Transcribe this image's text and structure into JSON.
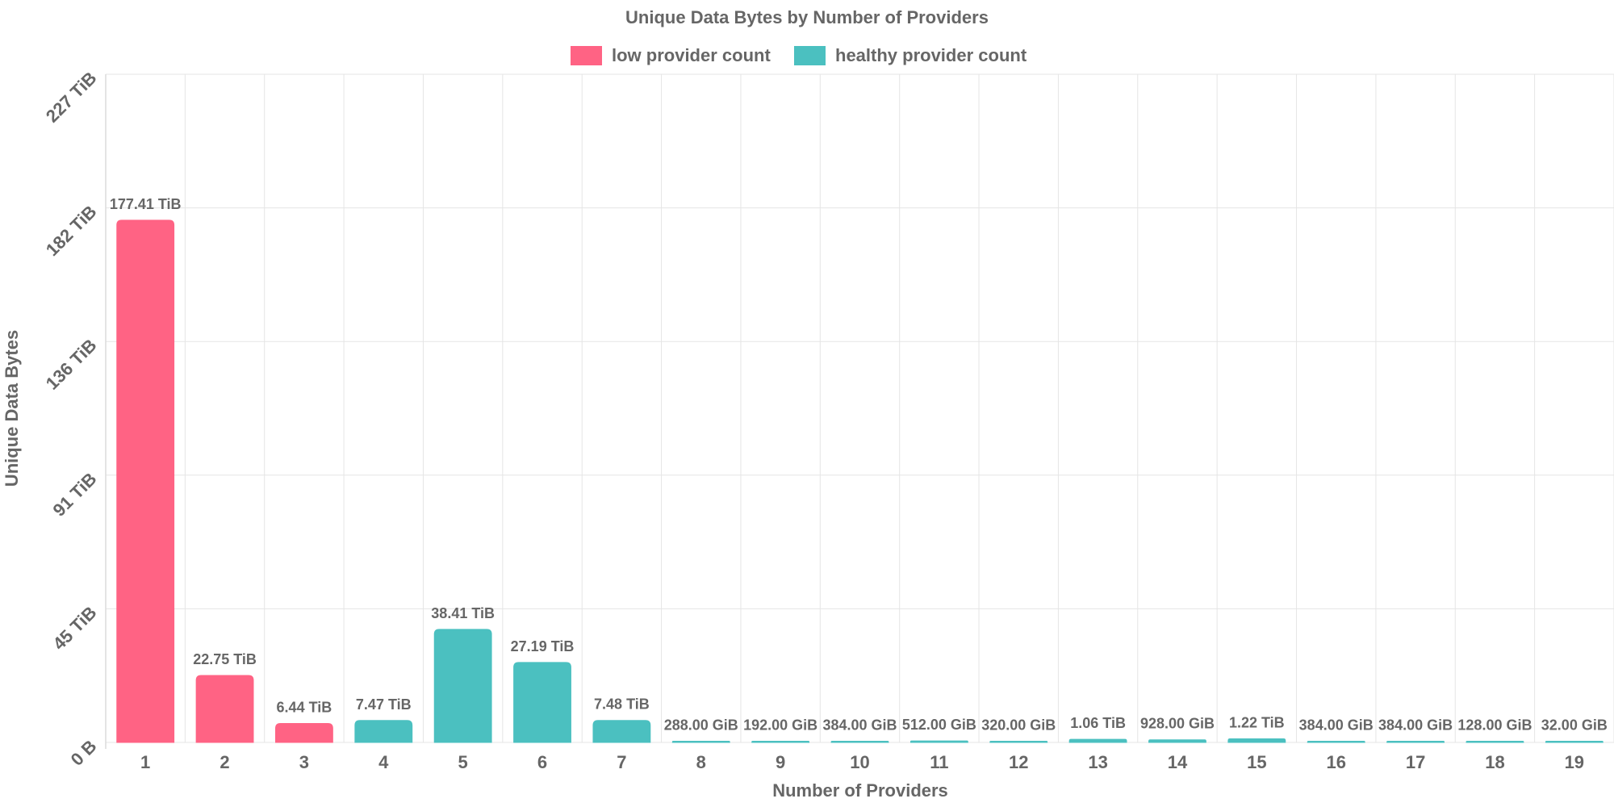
{
  "chart_data": {
    "type": "bar",
    "title": "Unique Data Bytes by Number of Providers",
    "xlabel": "Number of Providers",
    "ylabel": "Unique Data Bytes",
    "ylim": [
      0,
      227
    ],
    "y_unit": "TiB",
    "y_ticks": [
      0,
      45.4,
      90.8,
      136.2,
      181.6,
      227
    ],
    "y_tick_labels": [
      "0 B",
      "45 TiB",
      "91 TiB",
      "136 TiB",
      "182 TiB",
      "227 TiB"
    ],
    "grid": true,
    "legend_position": "top-center",
    "colors": {
      "low provider count": "#ff6384",
      "healthy provider count": "#4bc0c0"
    },
    "series": [
      {
        "name": "low provider count"
      },
      {
        "name": "healthy provider count"
      }
    ],
    "categories": [
      "1",
      "2",
      "3",
      "4",
      "5",
      "6",
      "7",
      "8",
      "9",
      "10",
      "11",
      "12",
      "13",
      "14",
      "15",
      "16",
      "17",
      "18",
      "19"
    ],
    "values": [
      177.41,
      22.75,
      6.44,
      7.47,
      38.41,
      27.19,
      7.48,
      0.28125,
      0.1875,
      0.375,
      0.5,
      0.3125,
      1.06,
      0.90625,
      1.22,
      0.375,
      0.375,
      0.125,
      0.03125
    ],
    "series_index": [
      0,
      0,
      0,
      1,
      1,
      1,
      1,
      1,
      1,
      1,
      1,
      1,
      1,
      1,
      1,
      1,
      1,
      1,
      1
    ],
    "data_labels": [
      "177.41 TiB",
      "22.75 TiB",
      "6.44 TiB",
      "7.47 TiB",
      "38.41 TiB",
      "27.19 TiB",
      "7.48 TiB",
      "288.00 GiB",
      "192.00 GiB",
      "384.00 GiB",
      "512.00 GiB",
      "320.00 GiB",
      "1.06 TiB",
      "928.00 GiB",
      "1.22 TiB",
      "384.00 GiB",
      "384.00 GiB",
      "128.00 GiB",
      "32.00 GiB"
    ]
  }
}
